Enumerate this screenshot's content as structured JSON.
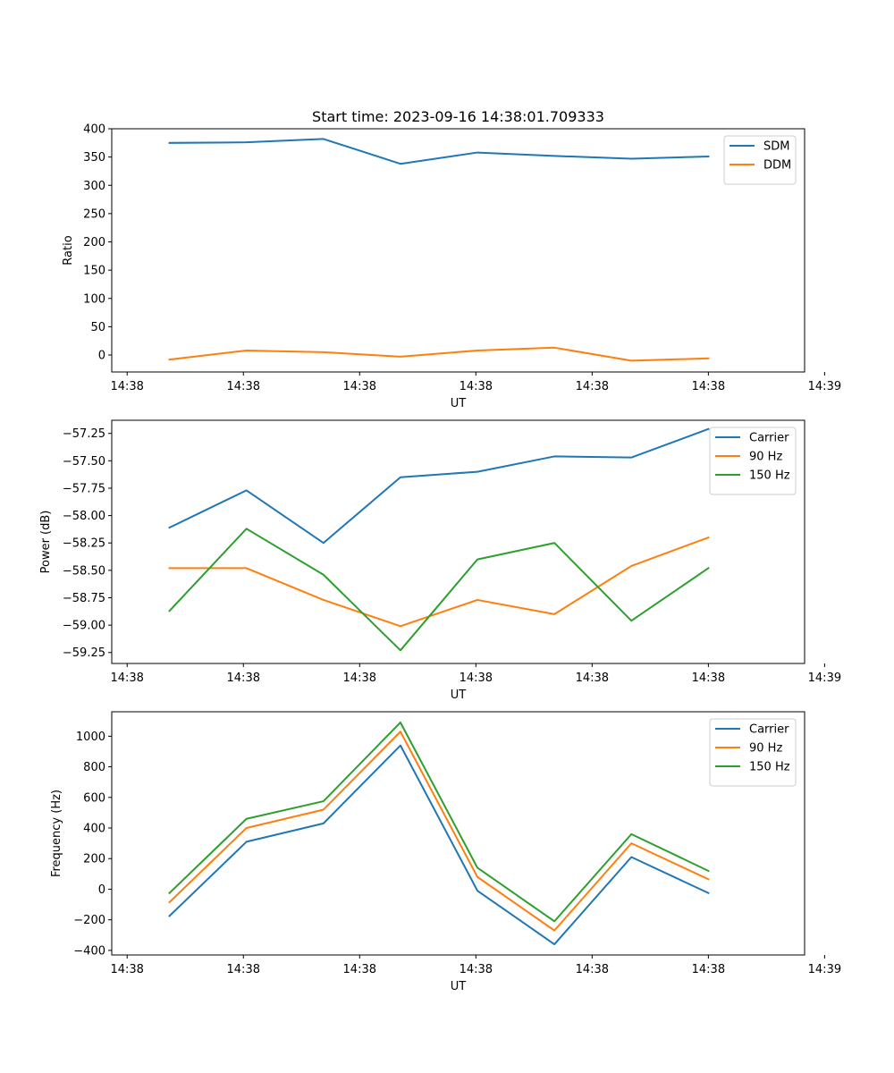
{
  "figure": {
    "title": "Start time: 2023-09-16 14:38:01.709333"
  },
  "chart_data": [
    {
      "type": "line",
      "ylabel": "Ratio",
      "xlabel": "UT",
      "ylim": [
        -30,
        400
      ],
      "yticks": [
        0,
        50,
        100,
        150,
        200,
        250,
        300,
        350,
        400
      ],
      "ytick_labels": [
        "0",
        "50",
        "100",
        "150",
        "200",
        "250",
        "300",
        "350",
        "400"
      ],
      "xlim": [
        -0.5,
        8.5
      ],
      "xticks": [
        -0.3,
        1.21,
        2.72,
        4.23,
        5.74,
        7.25,
        8.76
      ],
      "xtick_labels": [
        "14:38",
        "14:38",
        "14:38",
        "14:38",
        "14:38",
        "14:38",
        "14:39"
      ],
      "legend": "top-right",
      "x": [
        0.25,
        1.25,
        2.25,
        3.25,
        4.25,
        5.25,
        6.25,
        7.25
      ],
      "series": [
        {
          "name": "SDM",
          "color": "#1f77b4",
          "values": [
            375,
            376,
            382,
            338,
            358,
            352,
            347,
            351
          ]
        },
        {
          "name": "DDM",
          "color": "#ff7f0e",
          "values": [
            -8,
            8,
            5,
            -3,
            8,
            13,
            -10,
            -6
          ]
        }
      ]
    },
    {
      "type": "line",
      "ylabel": "Power (dB)",
      "xlabel": "UT",
      "ylim": [
        -59.35,
        -57.13
      ],
      "yticks": [
        -59.25,
        -59.0,
        -58.75,
        -58.5,
        -58.25,
        -58.0,
        -57.75,
        -57.5,
        -57.25
      ],
      "ytick_labels": [
        "−59.25",
        "−59.00",
        "−58.75",
        "−58.50",
        "−58.25",
        "−58.00",
        "−57.75",
        "−57.50",
        "−57.25"
      ],
      "xlim": [
        -0.5,
        8.5
      ],
      "xticks": [
        -0.3,
        1.21,
        2.72,
        4.23,
        5.74,
        7.25,
        8.76
      ],
      "xtick_labels": [
        "14:38",
        "14:38",
        "14:38",
        "14:38",
        "14:38",
        "14:38",
        "14:39"
      ],
      "legend": "top-right",
      "x": [
        0.25,
        1.25,
        2.25,
        3.25,
        4.25,
        5.25,
        6.25,
        7.25
      ],
      "series": [
        {
          "name": "Carrier",
          "color": "#1f77b4",
          "values": [
            -58.11,
            -57.77,
            -58.25,
            -57.65,
            -57.6,
            -57.46,
            -57.47,
            -57.21
          ]
        },
        {
          "name": "90 Hz",
          "color": "#ff7f0e",
          "values": [
            -58.48,
            -58.48,
            -58.77,
            -59.01,
            -58.77,
            -58.9,
            -58.46,
            -58.2
          ]
        },
        {
          "name": "150 Hz",
          "color": "#2ca02c",
          "values": [
            -58.87,
            -58.12,
            -58.54,
            -59.23,
            -58.4,
            -58.25,
            -58.96,
            -58.48
          ]
        }
      ]
    },
    {
      "type": "line",
      "ylabel": "Frequency (Hz)",
      "xlabel": "UT",
      "ylim": [
        -430,
        1160
      ],
      "yticks": [
        -400,
        -200,
        0,
        200,
        400,
        600,
        800,
        1000
      ],
      "ytick_labels": [
        "−400",
        "−200",
        "0",
        "200",
        "400",
        "600",
        "800",
        "1000"
      ],
      "xlim": [
        -0.5,
        8.5
      ],
      "xticks": [
        -0.3,
        1.21,
        2.72,
        4.23,
        5.74,
        7.25,
        8.76
      ],
      "xtick_labels": [
        "14:38",
        "14:38",
        "14:38",
        "14:38",
        "14:38",
        "14:38",
        "14:39"
      ],
      "legend": "top-right",
      "x": [
        0.25,
        1.25,
        2.25,
        3.25,
        4.25,
        5.25,
        6.25,
        7.25
      ],
      "series": [
        {
          "name": "Carrier",
          "color": "#1f77b4",
          "values": [
            -175,
            310,
            430,
            940,
            -10,
            -360,
            210,
            -25
          ]
        },
        {
          "name": "90 Hz",
          "color": "#ff7f0e",
          "values": [
            -85,
            400,
            520,
            1030,
            80,
            -270,
            300,
            65
          ]
        },
        {
          "name": "150 Hz",
          "color": "#2ca02c",
          "values": [
            -25,
            460,
            575,
            1090,
            140,
            -210,
            360,
            120
          ]
        }
      ]
    }
  ]
}
